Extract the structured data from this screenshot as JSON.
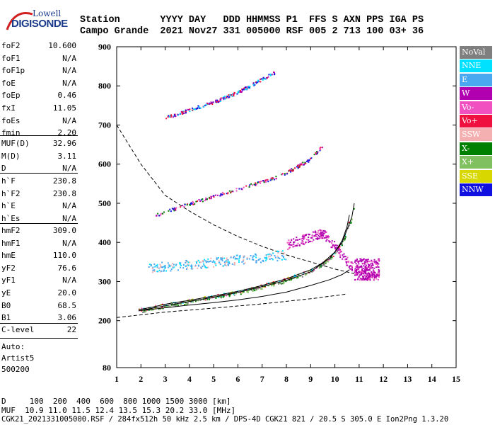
{
  "header": {
    "logo_top": "Lowell",
    "logo_bottom": "DIGISONDE",
    "line1": "Station       YYYY DAY   DDD HHMMSS P1  FFS S AXN PPS IGA PS",
    "line2": "Campo Grande  2021 Nov27 331 005000 RSF 005 2 713 100 03+ 36"
  },
  "params_group1": [
    {
      "name": "foF2",
      "value": "10.600"
    },
    {
      "name": "foF1",
      "value": "N/A"
    },
    {
      "name": "foF1p",
      "value": "N/A"
    },
    {
      "name": "foE",
      "value": "N/A"
    },
    {
      "name": "foEp",
      "value": "0.46"
    },
    {
      "name": "fxI",
      "value": "11.05"
    },
    {
      "name": "foEs",
      "value": "N/A"
    },
    {
      "name": "fmin",
      "value": "2.20"
    }
  ],
  "params_group2": [
    {
      "name": "MUF(D)",
      "value": "32.96"
    },
    {
      "name": "M(D)",
      "value": "3.11"
    },
    {
      "name": "D",
      "value": "N/A"
    }
  ],
  "params_group3": [
    {
      "name": "h`F",
      "value": "230.8"
    },
    {
      "name": "h`F2",
      "value": "230.8"
    },
    {
      "name": "h`E",
      "value": "N/A"
    },
    {
      "name": "h`Es",
      "value": "N/A"
    }
  ],
  "params_group4": [
    {
      "name": "hmF2",
      "value": "309.0"
    },
    {
      "name": "hmF1",
      "value": "N/A"
    },
    {
      "name": "hmE",
      "value": "110.0"
    },
    {
      "name": "yF2",
      "value": "76.6"
    },
    {
      "name": "yF1",
      "value": "N/A"
    },
    {
      "name": "yE",
      "value": "20.0"
    },
    {
      "name": "B0",
      "value": "68.5"
    },
    {
      "name": "B1",
      "value": "3.06"
    }
  ],
  "params_group5": [
    {
      "name": "C-level",
      "value": "22"
    }
  ],
  "autoscale": {
    "line1": "Auto:",
    "line2": "Artist5",
    "line3": "500200"
  },
  "legend": [
    {
      "label": "NoVal",
      "color": "#7f7f7f"
    },
    {
      "label": "NNE",
      "color": "#00e0ff"
    },
    {
      "label": "E",
      "color": "#4aa8f0"
    },
    {
      "label": "W",
      "color": "#b000b0"
    },
    {
      "label": "Vo-",
      "color": "#f050c0"
    },
    {
      "label": "Vo+",
      "color": "#f01040"
    },
    {
      "label": "SSW",
      "color": "#f4b0b0"
    },
    {
      "label": "X-",
      "color": "#008000"
    },
    {
      "label": "X+",
      "color": "#80c060"
    },
    {
      "label": "SSE",
      "color": "#d8d800"
    },
    {
      "label": "NNW",
      "color": "#1010e0"
    }
  ],
  "footer": {
    "d_line": "D     100  200  400  600  800 1000 1500 3000 [km]",
    "muf_line": "MUF  10.9 11.0 11.5 12.4 13.5 15.3 20.2 33.0 [MHz]",
    "info_line": "CGK21_2021331005000.RSF / 284fx512h 50 kHz 2.5 km / DPS-4D CGK21 821 / 20.5 S 305.0 E Ion2Png 1.3.20"
  },
  "chart_data": {
    "type": "scatter",
    "xlim": [
      1,
      15
    ],
    "ylim": [
      80,
      900
    ],
    "x_ticks": [
      1,
      2,
      3,
      4,
      5,
      6,
      7,
      8,
      9,
      10,
      11,
      12,
      13,
      14,
      15
    ],
    "y_ticks": [
      80,
      200,
      300,
      400,
      500,
      600,
      700,
      800,
      900
    ],
    "grid": false,
    "legend_position": "right",
    "traces": [
      {
        "name": "O-trace",
        "points": [
          [
            1.9,
            228
          ],
          [
            2.5,
            235
          ],
          [
            3,
            242
          ],
          [
            4,
            252
          ],
          [
            5,
            263
          ],
          [
            6,
            275
          ],
          [
            7,
            290
          ],
          [
            8,
            307
          ],
          [
            9,
            330
          ],
          [
            9.5,
            348
          ],
          [
            10,
            375
          ],
          [
            10.3,
            405
          ],
          [
            10.5,
            440
          ],
          [
            10.6,
            470
          ]
        ]
      },
      {
        "name": "X-trace",
        "points": [
          [
            2,
            226
          ],
          [
            3,
            238
          ],
          [
            4,
            249
          ],
          [
            5,
            260
          ],
          [
            6,
            272
          ],
          [
            7,
            287
          ],
          [
            8,
            303
          ],
          [
            9,
            325
          ],
          [
            9.8,
            360
          ],
          [
            10.3,
            400
          ],
          [
            10.7,
            465
          ],
          [
            10.8,
            500
          ]
        ]
      },
      {
        "name": "O-2hop",
        "points": [
          [
            2.6,
            470
          ],
          [
            3.5,
            490
          ],
          [
            4.5,
            510
          ],
          [
            5.5,
            528
          ],
          [
            6.5,
            548
          ],
          [
            7.5,
            565
          ],
          [
            8.3,
            590
          ],
          [
            9,
            615
          ],
          [
            9.5,
            650
          ]
        ]
      },
      {
        "name": "O-3hop",
        "points": [
          [
            3,
            720
          ],
          [
            4,
            740
          ],
          [
            5,
            760
          ],
          [
            6,
            785
          ],
          [
            6.8,
            812
          ],
          [
            7.5,
            835
          ]
        ]
      },
      {
        "name": "oblique-E",
        "points": [
          [
            2.3,
            335
          ],
          [
            3,
            340
          ],
          [
            4,
            345
          ],
          [
            5,
            350
          ],
          [
            6,
            358
          ],
          [
            7,
            363
          ],
          [
            8,
            370
          ]
        ]
      },
      {
        "name": "oblique-W",
        "points": [
          [
            8,
            395
          ],
          [
            8.5,
            405
          ],
          [
            9,
            415
          ],
          [
            9.5,
            425
          ],
          [
            10.8,
            330
          ],
          [
            11.2,
            320
          ],
          [
            11.6,
            325
          ]
        ]
      }
    ],
    "profile_solid": [
      [
        1.9,
        225
      ],
      [
        3,
        233
      ],
      [
        4,
        240
      ],
      [
        5,
        246
      ],
      [
        6,
        253
      ],
      [
        7,
        262
      ],
      [
        8,
        273
      ],
      [
        9,
        290
      ],
      [
        9.8,
        305
      ],
      [
        10.3,
        318
      ],
      [
        10.6,
        330
      ]
    ],
    "muf_dashed": [
      [
        1,
        700
      ],
      [
        2,
        600
      ],
      [
        3,
        520
      ],
      [
        4,
        480
      ],
      [
        5,
        445
      ],
      [
        6,
        415
      ],
      [
        7,
        390
      ],
      [
        8,
        368
      ],
      [
        9,
        350
      ],
      [
        10,
        332
      ],
      [
        10.8,
        320
      ]
    ],
    "lower_dashed": [
      [
        1,
        208
      ],
      [
        3,
        222
      ],
      [
        5,
        232
      ],
      [
        7,
        243
      ],
      [
        9,
        256
      ],
      [
        10.5,
        268
      ]
    ]
  }
}
